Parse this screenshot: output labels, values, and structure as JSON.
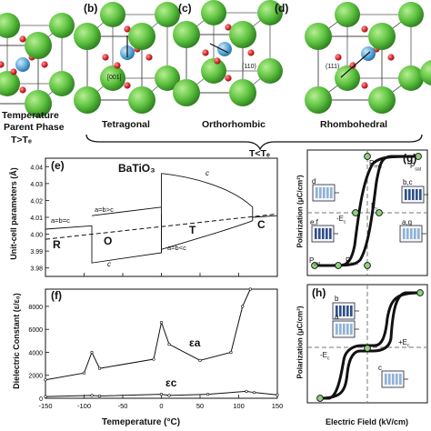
{
  "panels": {
    "a": {
      "label": "",
      "parent_line1": "Temperature",
      "parent_line2": "Parent Phase",
      "parent_line3": "T>Tₑ"
    },
    "b": {
      "label": "(b)",
      "phase": "Tetragonal",
      "direction": "[001]"
    },
    "c": {
      "label": "(c)",
      "phase": "Orthorhombic",
      "direction": "(110)"
    },
    "d": {
      "label": "(d)",
      "phase": "Rhombohedral",
      "direction": "(111)"
    },
    "brace_text": "T<Tₑ"
  },
  "chart_data": [
    {
      "panel": "(e)",
      "type": "line",
      "title": "BaTiO₃",
      "xlabel": "",
      "ylabel": "Unit-cell parameters (Å)",
      "xlim": [
        -150,
        150
      ],
      "ylim": [
        3.975,
        4.045
      ],
      "yticks": [
        "3.98",
        "3.99",
        "4.00",
        "4.01",
        "4.02",
        "4.03",
        "4.04"
      ],
      "phase_labels": [
        "R",
        "O",
        "T",
        "C"
      ],
      "annotations": [
        "a=b>c",
        "a=b=c",
        "a=b<c",
        "c",
        "c"
      ],
      "series": [
        {
          "name": "a",
          "x": [
            -150,
            -90,
            -80,
            0,
            10,
            120
          ],
          "y": [
            4.003,
            4.005,
            4.01,
            4.012,
            4.009,
            4.009
          ]
        },
        {
          "name": "c",
          "x": [
            -150,
            -90,
            -80,
            0,
            10,
            60,
            120
          ],
          "y": [
            4.003,
            4.005,
            3.983,
            3.989,
            4.036,
            4.03,
            4.015
          ]
        },
        {
          "name": "cubic",
          "x": [
            110,
            150
          ],
          "y": [
            4.01,
            4.011
          ]
        }
      ]
    },
    {
      "panel": "(f)",
      "type": "line",
      "xlabel": "Temeperature (°C)",
      "ylabel": "Dielectric Constant (ε/ε₀)",
      "xlim": [
        -150,
        150
      ],
      "ylim": [
        0,
        9500
      ],
      "xticks": [
        "-150",
        "-100",
        "-50",
        "0",
        "50",
        "100",
        "150"
      ],
      "yticks": [
        "0",
        "2000",
        "4000",
        "6000",
        "8000"
      ],
      "series": [
        {
          "name": "εa",
          "x": [
            -150,
            -100,
            -90,
            -80,
            -10,
            0,
            10,
            50,
            90,
            105,
            115
          ],
          "y": [
            1600,
            2200,
            4000,
            2600,
            3400,
            6600,
            4700,
            3300,
            4000,
            8000,
            9500
          ]
        },
        {
          "name": "εc",
          "x": [
            -150,
            -90,
            -80,
            0,
            10,
            60,
            110,
            120,
            150
          ],
          "y": [
            150,
            250,
            200,
            350,
            250,
            350,
            600,
            500,
            300
          ]
        }
      ]
    },
    {
      "panel": "(g)",
      "type": "line",
      "ylabel": "Polarization (μC/cm²)",
      "annotations": [
        "Pₛₐₜ",
        "Pᵣₑₘ",
        "Pₛₐₜ",
        "-Eᶜ",
        "Eᶜ",
        "Pₛₐₜ",
        "Pᵣₑₘ"
      ],
      "point_labels": [
        "b,c",
        "d",
        "e,f",
        "a,g"
      ]
    },
    {
      "panel": "(h)",
      "type": "line",
      "xlabel": "Electric Field (kV/cm)",
      "ylabel": "Polarization (μC/cm²)",
      "annotations": [
        "+Eᶜ",
        "-Eᶜ"
      ],
      "point_labels": [
        "b",
        "a",
        "c"
      ]
    }
  ],
  "labels": {
    "e": "(e)",
    "f": "(f)",
    "g": "(g)",
    "h": "(h)",
    "ea": "εa",
    "ec": "εc",
    "e_phase_R": "R",
    "e_phase_O": "O",
    "e_phase_T": "T",
    "e_phase_C": "C",
    "e_ann_abc_gt": "a=b>c",
    "e_ann_abc_eq": "a=b=c",
    "e_ann_abc_lt": "a=b<c",
    "e_ann_c1": "c",
    "e_ann_c2": "c",
    "g_psat1": "P",
    "g_psat1_sub": "sat",
    "g_prem1": "P",
    "g_prem1_sub": "rem",
    "g_psat2": "P",
    "g_psat2_sub": "sat",
    "g_prem2": "P",
    "g_prem2_sub": "rem",
    "g_mEc": "-E",
    "g_Ec": "E",
    "g_c": "c",
    "g_bc": "b,c",
    "g_d": "d",
    "g_ef": "e,f",
    "g_ag": "a,g",
    "h_pEc": "+E",
    "h_mEc": "-E",
    "h_c": "c",
    "h_b": "b",
    "h_a": "a",
    "h_cc": "c"
  },
  "colors": {
    "sphere_green": "#5fc341",
    "sphere_dark": "#2c7d1f",
    "center_blue": "#5aa7d8",
    "oxygen_red": "#d8262d",
    "line": "#111111",
    "grey_line": "#999999"
  }
}
